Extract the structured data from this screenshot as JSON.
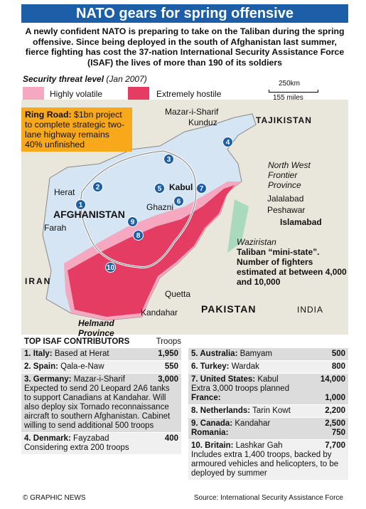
{
  "header": {
    "title": "NATO gears for spring offensive",
    "intro": "A newly confident NATO is preparing to take on the Taliban during the spring offensive. Since being deployed in the south of Afghanistan last summer, fierce fighting has cost the 37-nation International Security Assistance Force (ISAF) the lives of more than 190 of its soldiers"
  },
  "legend": {
    "title": "Security threat level",
    "date": "(Jan 2007)",
    "items": [
      "Highly volatile",
      "Extremely hostile"
    ],
    "scale_km": "250km",
    "scale_miles": "155 miles"
  },
  "callout": {
    "label": "Ring Road:",
    "text": "$1bn project to complete strategic two-lane highway remains 40% unfinished"
  },
  "map": {
    "places": [
      "Mazar-i-Sharif",
      "Kunduz",
      "TAJIKISTAN",
      "Herat",
      "AFGHANISTAN",
      "Kabul",
      "Ghazni",
      "Farah",
      "IRAN",
      "Quetta",
      "Kandahar",
      "Helmand Province",
      "PAKISTAN",
      "INDIA",
      "North West Frontier Province",
      "Jalalabad",
      "Peshawar",
      "Islamabad"
    ],
    "waziristan": {
      "name": "Waziristan",
      "text": "Taliban “mini-state”. Number of fighters estimated at between 4,000 and 10,000"
    },
    "markers": [
      "1",
      "2",
      "3",
      "4",
      "5",
      "6",
      "7",
      "8",
      "9",
      "10"
    ]
  },
  "table": {
    "title": "TOP ISAF CONTRIBUTORS",
    "troops_header": "Troops",
    "left": [
      {
        "name": "1. Italy:",
        "place": "Based at Herat",
        "troops": "1,950"
      },
      {
        "name": "2. Spain:",
        "place": "Qala-e-Naw",
        "troops": "550"
      },
      {
        "name": "3. Germany:",
        "place": "Mazar-i-Sharif",
        "troops": "3,000",
        "note": "Expected to send 20 Leopard 2A6 tanks to support Canadians at Kandahar. Will also deploy six Tornado reconnaissance aircraft to southern Afghanistan. Cabinet willing to send additional 500 troops"
      },
      {
        "name": "4. Denmark:",
        "place": "Fayzabad",
        "troops": "400",
        "note": "Considering extra 200 troops"
      }
    ],
    "right": [
      {
        "name": "5. Australia:",
        "place": "Bamyam",
        "troops": "500"
      },
      {
        "name": "6. Turkey:",
        "place": "Wardak",
        "troops": "800"
      },
      {
        "name": "7. United States:",
        "place": "Kabul",
        "troops": "14,000",
        "note": "Extra 3,000 troops planned",
        "sub_name": "France:",
        "sub_troops": "1,000"
      },
      {
        "name": "8. Netherlands:",
        "place": "Tarin Kowt",
        "troops": "2,200"
      },
      {
        "name": "9. Canada:",
        "place": "Kandahar",
        "troops": "2,500",
        "sub_name": "Romania:",
        "sub_troops": "750"
      },
      {
        "name": "10. Britain:",
        "place": "Lashkar Gah",
        "troops": "7,700",
        "note": "Includes extra 1,400 troops, backed by armoured vehicles and helicopters, to be deployed by summer"
      }
    ]
  },
  "footer": {
    "credit": "© GRAPHIC NEWS",
    "source": "Source: International Security Assistance Force"
  }
}
